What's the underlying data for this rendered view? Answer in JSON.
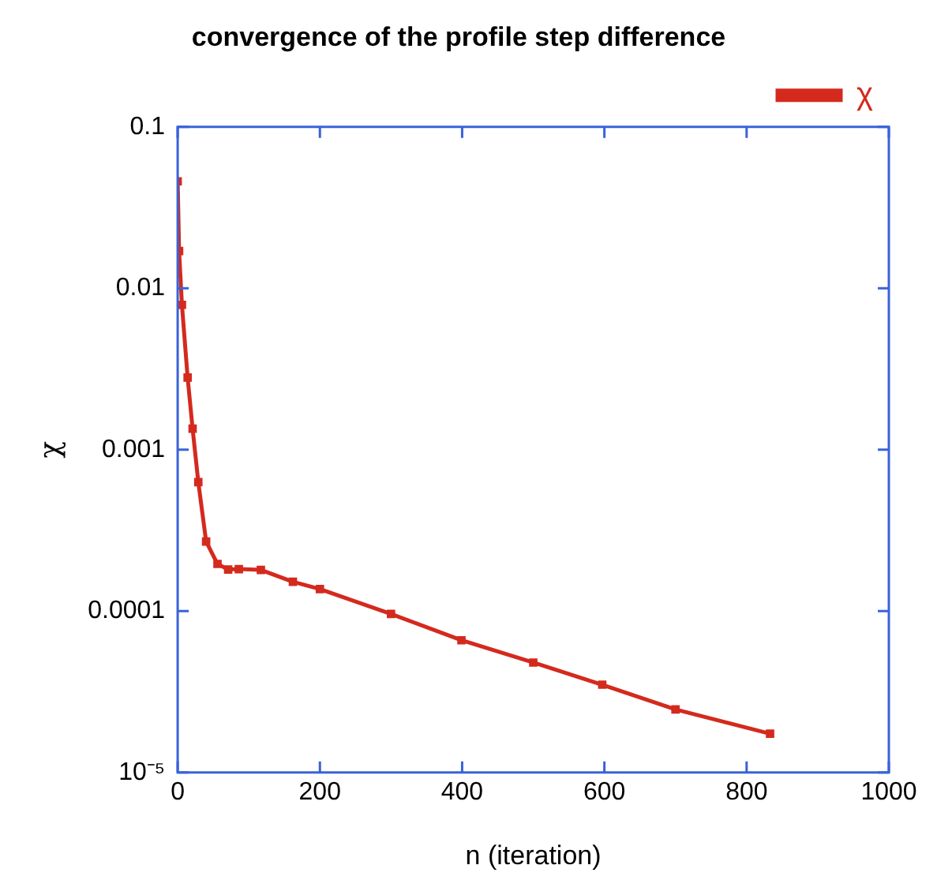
{
  "chart_data": {
    "type": "line",
    "title": "convergence of the profile step difference",
    "xlabel": "n (iteration)",
    "ylabel": "χ",
    "x": [
      0,
      2,
      6,
      14,
      21,
      29,
      40,
      56,
      71,
      86,
      117,
      162,
      200,
      300,
      399,
      500,
      597,
      700,
      833
    ],
    "series": [
      {
        "name": "χ",
        "color": "#d42a1e",
        "values": [
          0.046,
          0.017,
          0.0079,
          0.0028,
          0.00135,
          0.00063,
          0.00027,
          0.000196,
          0.000181,
          0.000182,
          0.00018,
          0.000152,
          0.000137,
          9.6e-05,
          6.6e-05,
          4.8e-05,
          3.5e-05,
          2.46e-05,
          1.74e-05
        ]
      }
    ],
    "log": "y",
    "xlim": [
      0,
      1000
    ],
    "xticks": [
      0,
      200,
      400,
      600,
      800,
      1000
    ],
    "ylim": [
      1e-05,
      0.1
    ],
    "yticks": [
      {
        "value": 1e-05,
        "label": "10⁻⁵"
      },
      0.0001,
      0.001,
      0.01,
      0.1
    ],
    "legend": "top right",
    "marker": "square",
    "line_style": "solid",
    "grid": false
  }
}
